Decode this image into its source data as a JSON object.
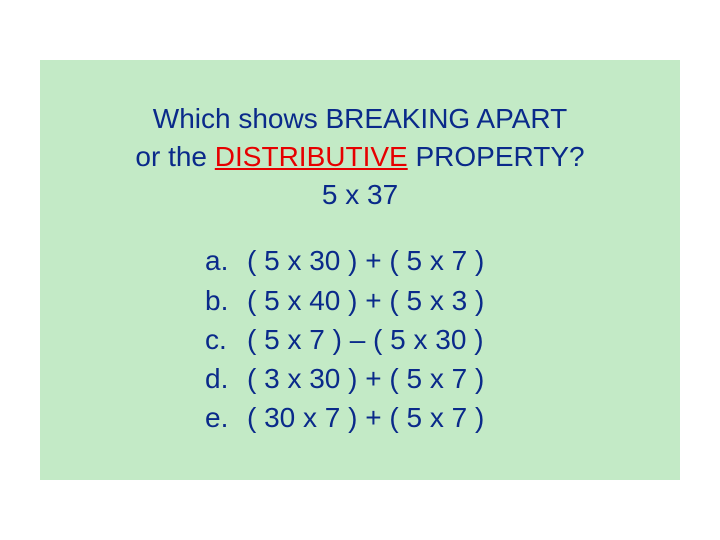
{
  "background_color": "#c3eac6",
  "text_color": "#0a2a8a",
  "highlight_color": "#e60000",
  "font_size_pt": 28,
  "question": {
    "line1": "Which  shows  BREAKING  APART",
    "line2_pre": "or the ",
    "line2_highlight": "DISTRIBUTIVE",
    "line2_post": "  PROPERTY?",
    "line3": "5 x 37"
  },
  "options": [
    {
      "letter": "a.",
      "text": "( 5 x 30 ) + ( 5 x 7 )"
    },
    {
      "letter": "b.",
      "text": "( 5 x 40 ) + ( 5 x 3 )"
    },
    {
      "letter": "c.",
      "text": "( 5 x 7 ) – ( 5 x 30 )"
    },
    {
      "letter": "d.",
      "text": "( 3 x 30 ) + ( 5 x 7 )"
    },
    {
      "letter": "e.",
      "text": "( 30 x 7 ) + ( 5 x 7 )"
    }
  ]
}
